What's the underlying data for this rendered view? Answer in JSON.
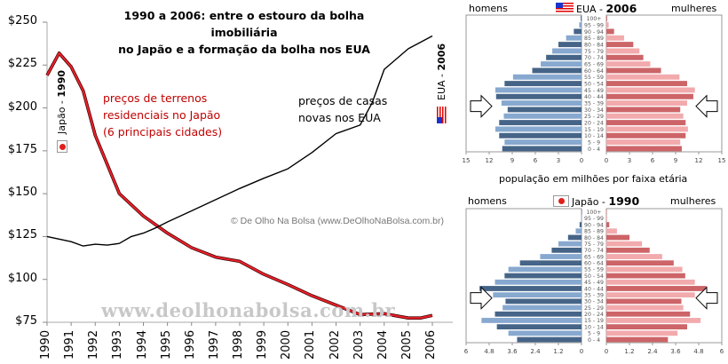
{
  "chart_data": [
    {
      "type": "line",
      "title": "1990 a 2006: entre o estouro da bolha imobiliária no Japão e a formação da bolha nos EUA",
      "title_lines": [
        "1990 a 2006: entre o estouro da bolha imobiliária",
        "no Japão e a formação da bolha nos EUA"
      ],
      "xlabel": "",
      "ylabel": "",
      "ylim": [
        75,
        250
      ],
      "xlim": [
        1990,
        2006
      ],
      "yticks": [
        250,
        225,
        200,
        175,
        150,
        125,
        100,
        75
      ],
      "ytick_labels": [
        "$250",
        "$225",
        "$200",
        "$175",
        "$150",
        "$125",
        "$100",
        "$75"
      ],
      "xtick_labels": [
        "1990",
        "1991",
        "1992",
        "1993",
        "1994",
        "1995",
        "1996",
        "1997",
        "1998",
        "1999",
        "2000",
        "2001",
        "2002",
        "2003",
        "2004",
        "2005",
        "2006"
      ],
      "grid": false,
      "series": [
        {
          "name": "preços de terrenos residenciais no Japão (6 principais cidades)",
          "label_lines": [
            "preços de terrenos",
            "residenciais no Japão",
            "(6 principais cidades)"
          ],
          "color": "#e8202a",
          "x": [
            1990,
            1990.5,
            1991,
            1991.5,
            1992,
            1993,
            1994,
            1995,
            1996,
            1997,
            1998,
            1999,
            2000,
            2001,
            2002,
            2003,
            2004,
            2005,
            2005.5,
            2006
          ],
          "values": [
            219,
            232,
            224,
            210,
            184,
            150,
            137,
            127,
            118.5,
            113,
            110.5,
            103,
            97,
            90.5,
            85,
            79.5,
            80,
            77.5,
            77.5,
            79
          ]
        },
        {
          "name": "preços de casas novas nos EUA",
          "label_lines": [
            "preços de casas",
            "novas nos EUA"
          ],
          "color": "#000000",
          "x": [
            1990,
            1991,
            1991.5,
            1992,
            1992.5,
            1993,
            1993.5,
            1994,
            1994.5,
            1995,
            1996,
            1997,
            1998,
            1999,
            2000,
            2001,
            2002,
            2003,
            2003.5,
            2004,
            2005,
            2006
          ],
          "values": [
            125,
            122,
            119.5,
            120.5,
            120,
            121,
            125,
            127,
            130,
            133.5,
            140,
            146.5,
            153,
            159,
            164.5,
            174,
            185,
            190,
            203,
            222.5,
            234.5,
            242
          ]
        }
      ],
      "annotations": {
        "japan_marker": "Japão - 1990",
        "japan_marker_year": "1990",
        "japan_marker_prefix": "Japão - ",
        "usa_marker": "EUA - 2006",
        "usa_marker_year": "2006",
        "usa_marker_prefix": "EUA - ",
        "credit": "© De Olho Na Bolsa (www.DeOlhoNaBolsa.com.br)",
        "watermark": "www.deolhonabolsa.com.br"
      }
    },
    {
      "type": "bar",
      "title": "EUA - 2006",
      "title_prefix": "EUA - ",
      "title_year": "2006",
      "left_label": "homens",
      "right_label": "mulheres",
      "xlabel": "população em milhões por faixa etária",
      "xlim": [
        0,
        15
      ],
      "xtick_labels_left": [
        "15",
        "12",
        "9",
        "6",
        "3",
        "0"
      ],
      "xtick_labels_right": [
        "0",
        "3",
        "6",
        "9",
        "12",
        "15"
      ],
      "categories": [
        "100+",
        "95 - 99",
        "90 - 94",
        "85 - 89",
        "80 - 84",
        "75 - 79",
        "70 - 74",
        "65 - 69",
        "60 - 64",
        "55 - 59",
        "50 - 54",
        "45 - 49",
        "40 - 44",
        "35 - 39",
        "30 - 34",
        "25 - 29",
        "20 - 24",
        "15 - 19",
        "10 - 14",
        "5 - 9",
        "0 - 4"
      ],
      "series": [
        {
          "name": "homens",
          "values": [
            0.1,
            0.3,
            1.0,
            2.0,
            3.0,
            3.8,
            4.6,
            5.3,
            6.4,
            8.9,
            10.0,
            11.2,
            11.1,
            10.4,
            9.6,
            10.1,
            10.7,
            11.2,
            10.7,
            10.0,
            10.3
          ]
        },
        {
          "name": "mulheres",
          "values": [
            0.1,
            0.3,
            1.0,
            2.3,
            3.5,
            4.3,
            4.8,
            5.7,
            7.1,
            9.5,
            10.5,
            11.5,
            11.3,
            10.5,
            9.6,
            10.0,
            10.3,
            10.6,
            10.3,
            9.6,
            9.8
          ]
        }
      ]
    },
    {
      "type": "bar",
      "title": "Japão - 1990",
      "title_prefix": "Japão - ",
      "title_year": "1990",
      "left_label": "homens",
      "right_label": "mulheres",
      "xlabel": "",
      "xlim": [
        0,
        6
      ],
      "xtick_labels_left": [
        "6",
        "4.8",
        "3.6",
        "2.4",
        "1.2",
        "0"
      ],
      "xtick_labels_right": [
        "0",
        "1.2",
        "2.4",
        "3.6",
        "4.8",
        "6"
      ],
      "categories": [
        "100+",
        "95 - 99",
        "90 - 94",
        "85 - 89",
        "80 - 84",
        "75 - 79",
        "70 - 74",
        "65 - 69",
        "60 - 64",
        "55 - 59",
        "50 - 54",
        "45 - 49",
        "40 - 44",
        "35 - 39",
        "30 - 34",
        "25 - 29",
        "20 - 24",
        "15 - 19",
        "10 - 14",
        "5 - 9",
        "0 - 4"
      ],
      "series": [
        {
          "name": "homens",
          "values": [
            0.0,
            0.02,
            0.1,
            0.3,
            0.7,
            1.2,
            1.55,
            2.15,
            3.2,
            3.8,
            4.0,
            4.5,
            5.3,
            4.6,
            3.95,
            4.1,
            4.5,
            5.2,
            4.4,
            3.8,
            3.35
          ]
        },
        {
          "name": "mulheres",
          "values": [
            0.01,
            0.04,
            0.15,
            0.55,
            1.2,
            1.85,
            2.25,
            2.9,
            3.5,
            3.95,
            4.1,
            4.6,
            5.2,
            4.6,
            3.9,
            4.0,
            4.35,
            4.9,
            4.2,
            3.7,
            3.2
          ]
        }
      ]
    }
  ],
  "colors": {
    "japan_line": "#e8202a",
    "usa_line": "#000000",
    "men_dark": "#456487",
    "men_light": "#87a8cf",
    "women_dark": "#cc6468",
    "women_light": "#f2aaad",
    "japan_red_dot": "#e0201c"
  }
}
